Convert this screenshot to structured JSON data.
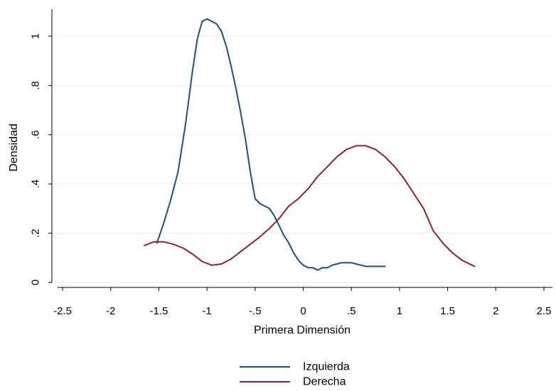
{
  "chart_data": {
    "type": "line",
    "title": "",
    "xlabel": "Primera Dimensión",
    "ylabel": "Densidad",
    "xlim": [
      -2.5,
      2.5
    ],
    "ylim": [
      0,
      1.1
    ],
    "x_ticks": [
      -2.5,
      -2,
      -1.5,
      -1,
      -0.5,
      0,
      0.5,
      1,
      1.5,
      2,
      2.5
    ],
    "x_tick_labels": [
      "-2.5",
      "-2",
      "-1.5",
      "-1",
      "-.5",
      "0",
      ".5",
      "1",
      "1.5",
      "2",
      "2.5"
    ],
    "y_ticks": [
      0,
      0.2,
      0.4,
      0.6,
      0.8,
      1
    ],
    "y_tick_labels": [
      "0",
      ".2",
      ".4",
      ".6",
      ".8",
      "1"
    ],
    "grid": true,
    "legend_position": "bottom",
    "series": [
      {
        "name": "Izquierda",
        "color": "#1f4e79",
        "x": [
          -1.52,
          -1.45,
          -1.38,
          -1.3,
          -1.22,
          -1.15,
          -1.1,
          -1.05,
          -1.0,
          -0.95,
          -0.9,
          -0.85,
          -0.8,
          -0.75,
          -0.7,
          -0.65,
          -0.6,
          -0.55,
          -0.5,
          -0.45,
          -0.4,
          -0.35,
          -0.3,
          -0.25,
          -0.2,
          -0.15,
          -0.1,
          -0.05,
          0.0,
          0.05,
          0.1,
          0.15,
          0.2,
          0.25,
          0.3,
          0.35,
          0.4,
          0.45,
          0.5,
          0.55,
          0.6,
          0.65,
          0.7,
          0.75,
          0.8,
          0.85
        ],
        "y": [
          0.16,
          0.24,
          0.33,
          0.45,
          0.65,
          0.86,
          0.99,
          1.06,
          1.07,
          1.06,
          1.05,
          1.02,
          0.96,
          0.88,
          0.79,
          0.69,
          0.58,
          0.45,
          0.34,
          0.32,
          0.31,
          0.3,
          0.27,
          0.23,
          0.19,
          0.16,
          0.12,
          0.09,
          0.07,
          0.06,
          0.06,
          0.05,
          0.06,
          0.06,
          0.07,
          0.075,
          0.08,
          0.08,
          0.08,
          0.075,
          0.07,
          0.065,
          0.065,
          0.065,
          0.065,
          0.065
        ],
        "_note_trim": "",
        "_x2": [],
        "_y2": []
      },
      {
        "name": "Derecha",
        "color": "#8b2331",
        "x": [
          -1.65,
          -1.55,
          -1.45,
          -1.35,
          -1.25,
          -1.15,
          -1.05,
          -0.95,
          -0.85,
          -0.75,
          -0.65,
          -0.55,
          -0.45,
          -0.35,
          -0.25,
          -0.15,
          -0.05,
          0.05,
          0.15,
          0.25,
          0.35,
          0.45,
          0.55,
          0.65,
          0.75,
          0.85,
          0.95,
          1.05,
          1.15,
          1.25,
          1.35,
          1.45,
          1.55,
          1.65,
          1.78
        ],
        "y": [
          0.15,
          0.165,
          0.165,
          0.155,
          0.14,
          0.115,
          0.085,
          0.07,
          0.075,
          0.095,
          0.125,
          0.155,
          0.185,
          0.22,
          0.26,
          0.31,
          0.34,
          0.38,
          0.43,
          0.47,
          0.51,
          0.54,
          0.555,
          0.555,
          0.54,
          0.51,
          0.47,
          0.42,
          0.36,
          0.3,
          0.21,
          0.16,
          0.12,
          0.09,
          0.065
        ]
      }
    ]
  }
}
